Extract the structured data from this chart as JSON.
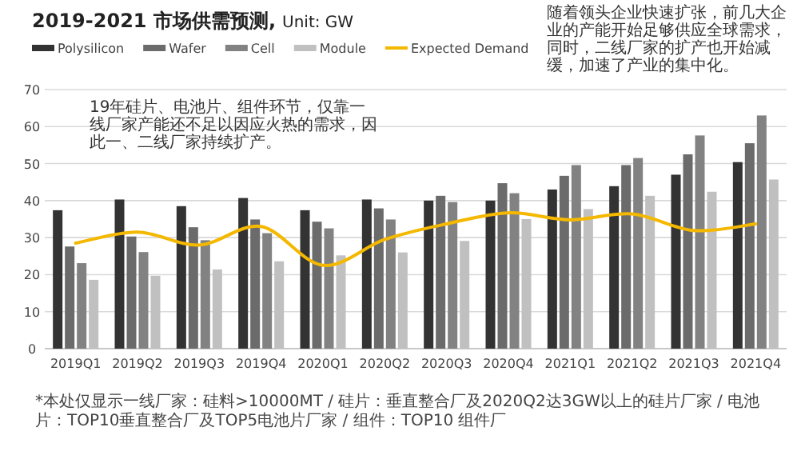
{
  "chart_data": {
    "type": "bar",
    "title": "2019-2021 市场供需预测,",
    "subtitle": "Unit: GW",
    "categories": [
      "2019Q1",
      "2019Q2",
      "2019Q3",
      "2019Q4",
      "2020Q1",
      "2020Q2",
      "2020Q3",
      "2020Q4",
      "2021Q1",
      "2021Q2",
      "2021Q3",
      "2021Q4"
    ],
    "series": [
      {
        "name": "Polysilicon",
        "color": "#333333",
        "values": [
          37.4,
          40.3,
          38.5,
          40.7,
          37.4,
          40.3,
          40,
          40,
          43,
          43.9,
          47,
          50.4
        ]
      },
      {
        "name": "Wafer",
        "color": "#6b6b6b",
        "values": [
          27.6,
          30.3,
          32.8,
          34.9,
          34.3,
          37.9,
          41.3,
          44.7,
          46.7,
          49.6,
          52.5,
          55.5
        ]
      },
      {
        "name": "Cell",
        "color": "#828282",
        "values": [
          23.1,
          26.1,
          29.3,
          31.2,
          32.5,
          34.9,
          39.6,
          42,
          49.6,
          51.5,
          57.6,
          63
        ]
      },
      {
        "name": "Module",
        "color": "#c0c0c0",
        "values": [
          18.6,
          19.7,
          21.4,
          23.6,
          25.2,
          26,
          29.1,
          35,
          37.7,
          41.3,
          42.4,
          45.7
        ]
      },
      {
        "name": "Expected Demand",
        "type": "line",
        "color": "#f5b800",
        "values": [
          28.5,
          31.5,
          28,
          33,
          22.5,
          29.5,
          33.7,
          36.7,
          34.8,
          36.4,
          31.9,
          33.7
        ]
      }
    ],
    "ylim": [
      0,
      70
    ],
    "yticks": [
      0,
      10,
      20,
      30,
      40,
      50,
      60,
      70
    ],
    "grid": "y",
    "legend": "top left",
    "annotations": [
      "19年硅片、电池片、组件环节，仅靠一线厂家产能还不足以因应火热的需求，因此一、二线厂家持续扩产。",
      "随着领头企业快速扩张，前几大企业的产能开始足够供应全球需求，同时，二线厂家的扩产也开始减缓，加速了产业的集中化。",
      "*本处仅显示一线厂家：硅料>10000MT / 硅片：垂直整合厂及2020Q2达3GW以上的硅片厂家 / 电池片：TOP10垂直整合厂及TOP5电池片厂家 / 组件：TOP10 组件厂"
    ]
  }
}
